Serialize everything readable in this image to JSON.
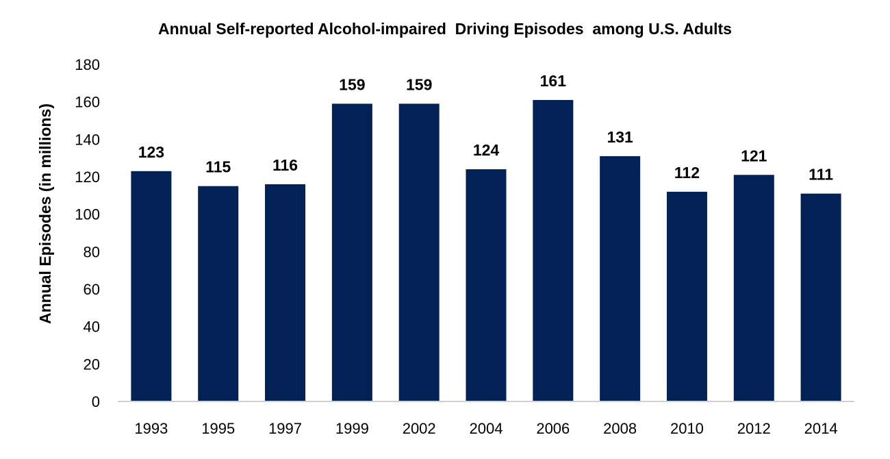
{
  "chart_data": {
    "type": "bar",
    "title": "Annual Self-reported Alcohol-impaired  Driving Episodes  among U.S. Adults",
    "xlabel": "",
    "ylabel": "Annual Episodes (in millions)",
    "categories": [
      "1993",
      "1995",
      "1997",
      "1999",
      "2002",
      "2004",
      "2006",
      "2008",
      "2010",
      "2012",
      "2014"
    ],
    "values": [
      123,
      115,
      116,
      159,
      159,
      124,
      161,
      131,
      112,
      121,
      111
    ],
    "ylim": [
      0,
      180
    ],
    "yticks": [
      0,
      20,
      40,
      60,
      80,
      100,
      120,
      140,
      160,
      180
    ],
    "grid": false,
    "bar_color": "#012157"
  }
}
